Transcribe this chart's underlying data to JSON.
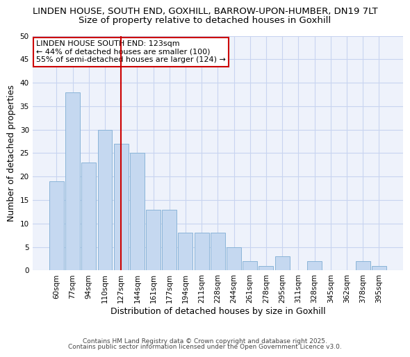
{
  "title": "LINDEN HOUSE, SOUTH END, GOXHILL, BARROW-UPON-HUMBER, DN19 7LT",
  "subtitle": "Size of property relative to detached houses in Goxhill",
  "xlabel": "Distribution of detached houses by size in Goxhill",
  "ylabel": "Number of detached properties",
  "bar_labels": [
    "60sqm",
    "77sqm",
    "94sqm",
    "110sqm",
    "127sqm",
    "144sqm",
    "161sqm",
    "177sqm",
    "194sqm",
    "211sqm",
    "228sqm",
    "244sqm",
    "261sqm",
    "278sqm",
    "295sqm",
    "311sqm",
    "328sqm",
    "345sqm",
    "362sqm",
    "378sqm",
    "395sqm"
  ],
  "bar_values": [
    19,
    38,
    23,
    30,
    27,
    25,
    13,
    13,
    8,
    8,
    8,
    5,
    2,
    1,
    3,
    0,
    2,
    0,
    0,
    2,
    1
  ],
  "bar_color": "#c5d8f0",
  "bar_edge_color": "#8ab4d8",
  "vline_x_index": 4,
  "vline_color": "#cc0000",
  "ylim": [
    0,
    50
  ],
  "yticks": [
    0,
    5,
    10,
    15,
    20,
    25,
    30,
    35,
    40,
    45,
    50
  ],
  "annotation_box_text": "LINDEN HOUSE SOUTH END: 123sqm\n← 44% of detached houses are smaller (100)\n55% of semi-detached houses are larger (124) →",
  "bg_color": "#eef2fb",
  "grid_color": "#c8d4f0",
  "footer_line1": "Contains HM Land Registry data © Crown copyright and database right 2025.",
  "footer_line2": "Contains public sector information licensed under the Open Government Licence v3.0.",
  "title_fontsize": 9.5,
  "subtitle_fontsize": 9.5,
  "axis_label_fontsize": 9,
  "tick_fontsize": 7.5,
  "annotation_fontsize": 8
}
